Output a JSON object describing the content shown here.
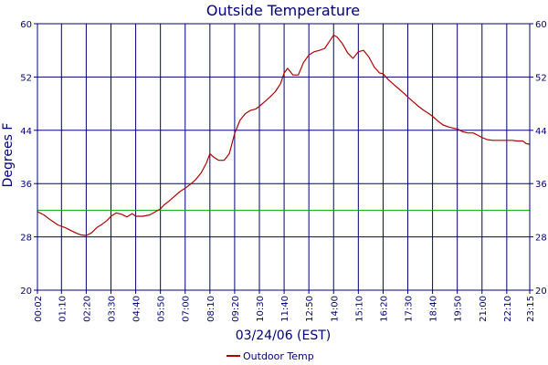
{
  "chart_data": {
    "type": "line",
    "title": "Outside Temperature",
    "xlabel": "03/24/06 (EST)",
    "ylabel": "Degrees F",
    "ylim": [
      20,
      60
    ],
    "yticks": [
      20,
      28,
      36,
      44,
      52,
      60
    ],
    "x_tick_labels": [
      "00:02",
      "01:10",
      "02:20",
      "03:30",
      "04:40",
      "05:50",
      "07:00",
      "08:10",
      "09:20",
      "10:30",
      "11:40",
      "12:50",
      "14:00",
      "15:10",
      "16:20",
      "17:30",
      "18:40",
      "19:50",
      "21:00",
      "22:10",
      "23:15"
    ],
    "grid": true,
    "legend_position": "bottom-center",
    "reference_line": {
      "value": 32,
      "color": "#00b000"
    },
    "colors": {
      "axis": "#00007a",
      "grid": "#00007a",
      "series": "#b00000",
      "reference": "#00b000"
    },
    "series": [
      {
        "name": "Outdoor Temp",
        "x": [
          "00:02",
          "00:20",
          "00:40",
          "01:00",
          "01:20",
          "01:35",
          "01:50",
          "02:05",
          "02:20",
          "02:35",
          "02:50",
          "03:05",
          "03:20",
          "03:30",
          "03:45",
          "04:00",
          "04:15",
          "04:30",
          "04:40",
          "05:00",
          "05:20",
          "05:40",
          "05:50",
          "06:00",
          "06:15",
          "06:30",
          "06:45",
          "07:00",
          "07:15",
          "07:30",
          "07:45",
          "08:00",
          "08:10",
          "08:20",
          "08:35",
          "08:50",
          "09:05",
          "09:20",
          "09:35",
          "09:50",
          "10:05",
          "10:20",
          "10:30",
          "10:45",
          "11:00",
          "11:15",
          "11:30",
          "11:40",
          "11:50",
          "12:05",
          "12:20",
          "12:35",
          "12:50",
          "13:05",
          "13:20",
          "13:35",
          "13:50",
          "14:00",
          "14:10",
          "14:25",
          "14:40",
          "14:55",
          "15:10",
          "15:25",
          "15:40",
          "15:55",
          "16:10",
          "16:20",
          "16:35",
          "16:50",
          "17:05",
          "17:20",
          "17:30",
          "17:45",
          "18:00",
          "18:15",
          "18:30",
          "18:40",
          "18:55",
          "19:10",
          "19:25",
          "19:40",
          "19:50",
          "20:05",
          "20:20",
          "20:35",
          "20:50",
          "21:00",
          "21:15",
          "21:30",
          "21:45",
          "22:00",
          "22:10",
          "22:25",
          "22:40",
          "22:55",
          "23:05",
          "23:15"
        ],
        "values": [
          31.8,
          31.3,
          30.5,
          29.8,
          29.4,
          29.0,
          28.6,
          28.3,
          28.2,
          28.6,
          29.4,
          29.9,
          30.5,
          31.1,
          31.6,
          31.4,
          31.0,
          31.5,
          31.1,
          31.1,
          31.3,
          31.9,
          32.2,
          32.8,
          33.4,
          34.1,
          34.8,
          35.3,
          35.9,
          36.6,
          37.6,
          39.1,
          40.5,
          40.0,
          39.5,
          39.5,
          40.5,
          43.5,
          45.5,
          46.5,
          47.0,
          47.2,
          47.6,
          48.3,
          49.0,
          49.8,
          51.0,
          52.6,
          53.3,
          52.3,
          52.3,
          54.2,
          55.3,
          55.8,
          56.0,
          56.3,
          57.5,
          58.3,
          58.0,
          57.0,
          55.6,
          54.8,
          55.8,
          56.0,
          55.0,
          53.5,
          52.6,
          52.5,
          51.6,
          50.9,
          50.2,
          49.5,
          49.0,
          48.3,
          47.6,
          47.0,
          46.5,
          46.1,
          45.4,
          44.8,
          44.5,
          44.3,
          44.2,
          43.8,
          43.6,
          43.6,
          43.2,
          42.9,
          42.6,
          42.5,
          42.5,
          42.5,
          42.5,
          42.5,
          42.4,
          42.4,
          42.0,
          41.9
        ]
      }
    ]
  }
}
